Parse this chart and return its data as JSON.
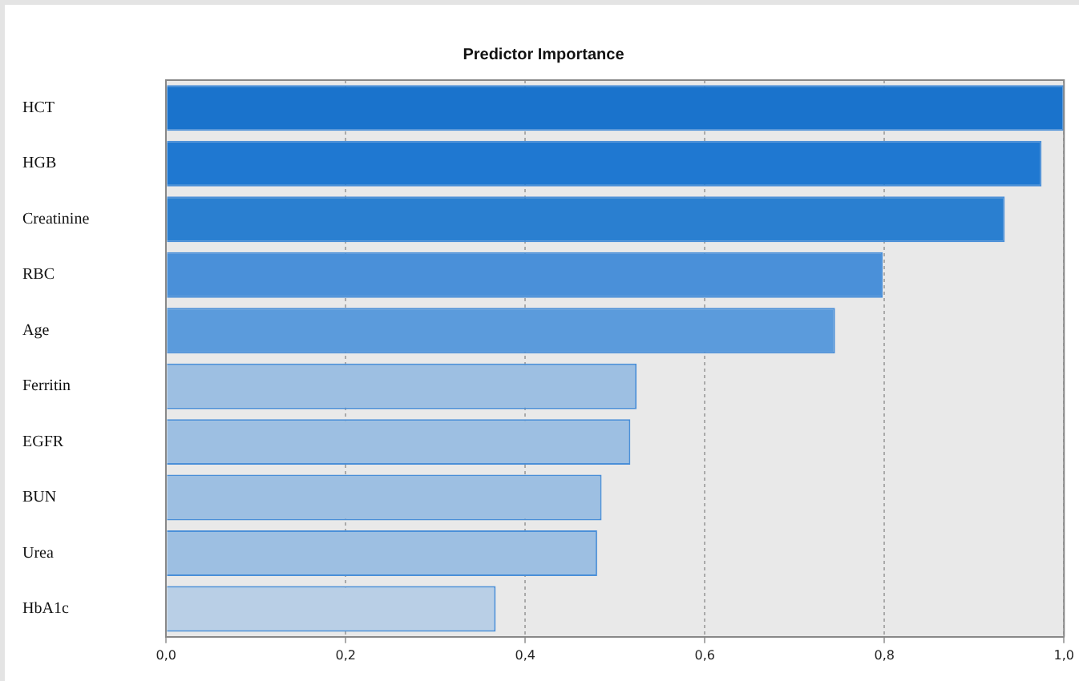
{
  "chart_data": {
    "type": "bar",
    "orientation": "horizontal",
    "title": "Predictor Importance",
    "categories": [
      "HCT",
      "HGB",
      "Creatinine",
      "RBC",
      "Age",
      "Ferritin",
      "EGFR",
      "BUN",
      "Urea",
      "HbA1c"
    ],
    "values": [
      1.0,
      0.975,
      0.934,
      0.798,
      0.745,
      0.524,
      0.517,
      0.485,
      0.48,
      0.367
    ],
    "colors": [
      "#1a73cc",
      "#1f78d1",
      "#2a7fd0",
      "#4a90d9",
      "#5b9bdc",
      "#9dbfe2",
      "#9dbfe2",
      "#9dbfe2",
      "#9dbfe2",
      "#b9cfe6"
    ],
    "xlim": [
      0,
      1
    ],
    "xticks": [
      {
        "value": 0,
        "label": "0,0"
      },
      {
        "value": 0.2,
        "label": "0,2"
      },
      {
        "value": 0.4,
        "label": "0,4"
      },
      {
        "value": 0.6,
        "label": "0,6"
      },
      {
        "value": 0.8,
        "label": "0,8"
      },
      {
        "value": 1,
        "label": "1,0"
      }
    ],
    "grid": "x",
    "legend": false
  }
}
